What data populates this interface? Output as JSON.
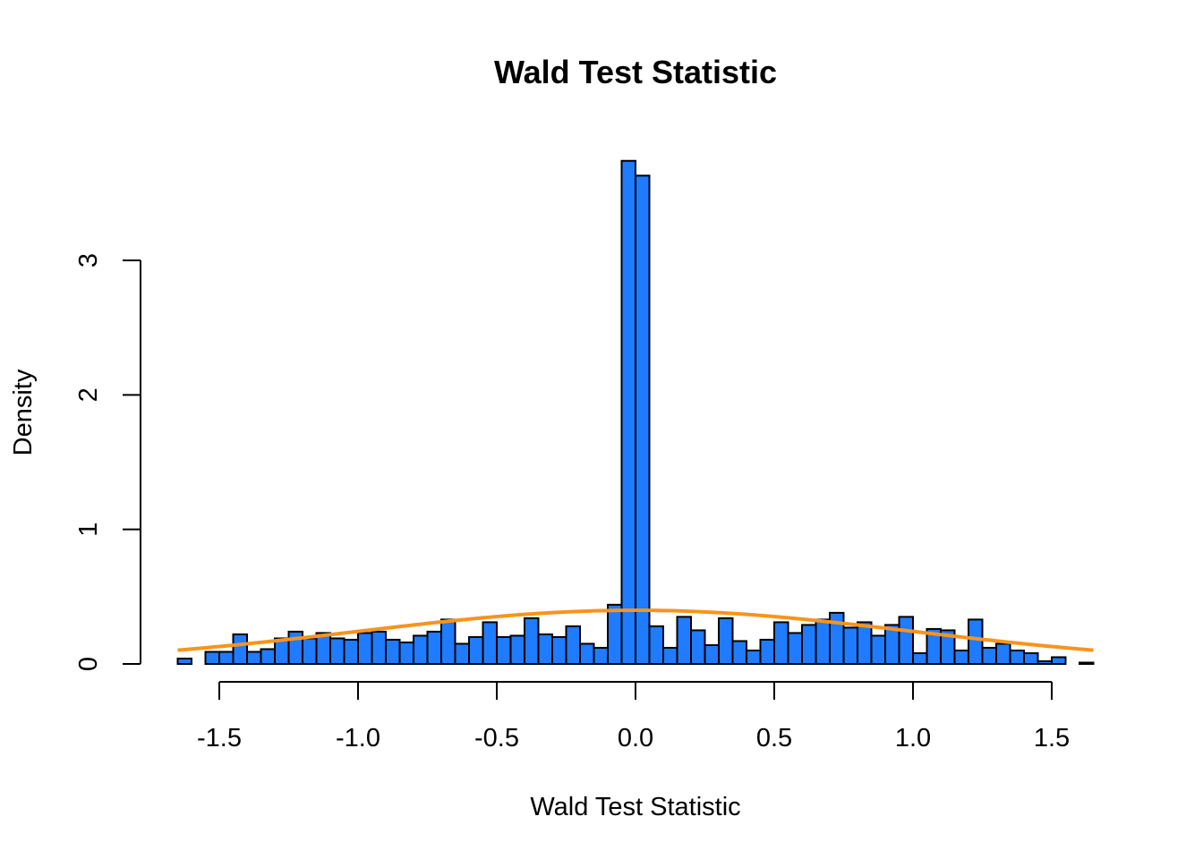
{
  "chart_data": {
    "type": "bar",
    "title": "Wald Test Statistic",
    "xlabel": "Wald Test Statistic",
    "ylabel": "Density",
    "xlim": [
      -1.65,
      1.65
    ],
    "ylim": [
      0,
      3
    ],
    "x_ticks": [
      -1.5,
      -1.0,
      -0.5,
      0.0,
      0.5,
      1.0,
      1.5
    ],
    "x_tick_labels": [
      "-1.5",
      "-1.0",
      "-0.5",
      "0.0",
      "0.5",
      "1.0",
      "1.5"
    ],
    "y_ticks": [
      0,
      1,
      2,
      3
    ],
    "y_tick_labels": [
      "0",
      "1",
      "2",
      "3"
    ],
    "bin_start": -1.65,
    "bin_width": 0.05,
    "bin_densities": [
      0.04,
      0.0,
      0.09,
      0.09,
      0.22,
      0.09,
      0.11,
      0.19,
      0.24,
      0.19,
      0.23,
      0.19,
      0.18,
      0.23,
      0.24,
      0.18,
      0.16,
      0.21,
      0.24,
      0.33,
      0.15,
      0.2,
      0.31,
      0.2,
      0.21,
      0.34,
      0.22,
      0.2,
      0.28,
      0.15,
      0.12,
      0.44,
      3.74,
      3.63,
      0.28,
      0.12,
      0.35,
      0.25,
      0.14,
      0.34,
      0.17,
      0.1,
      0.18,
      0.31,
      0.23,
      0.29,
      0.33,
      0.38,
      0.27,
      0.31,
      0.21,
      0.29,
      0.35,
      0.08,
      0.26,
      0.25,
      0.1,
      0.33,
      0.12,
      0.15,
      0.1,
      0.08,
      0.02,
      0.05,
      0.0,
      0.01
    ],
    "series": [
      {
        "type": "histogram",
        "color": "#1f7bff",
        "edge_color": "#000000"
      },
      {
        "type": "line",
        "distribution": "normal density",
        "mean": 0,
        "sd": 1,
        "color": "#f7941d"
      }
    ],
    "grid": false,
    "legend": "none"
  }
}
